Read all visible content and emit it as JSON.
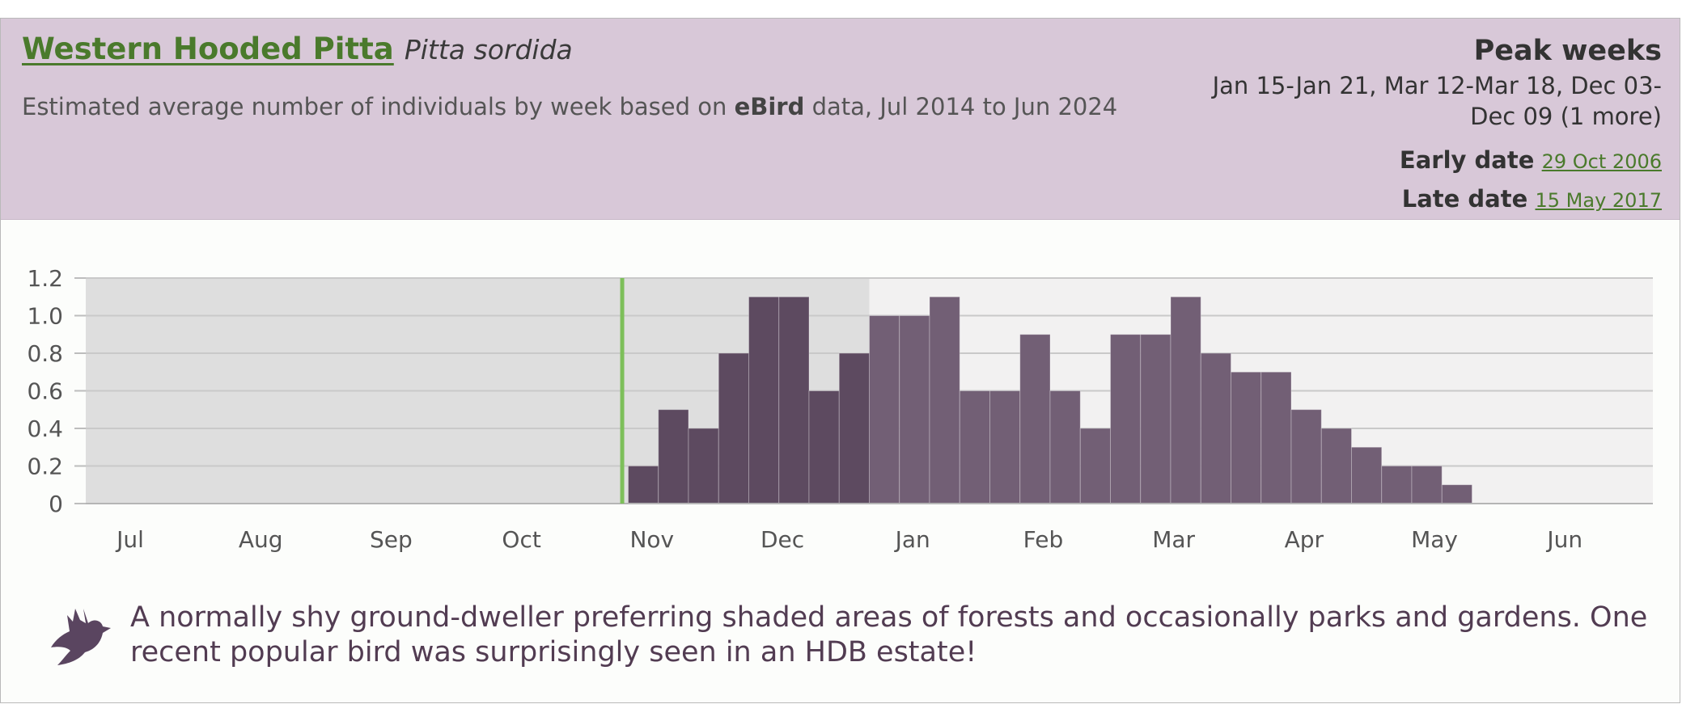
{
  "header": {
    "common_name": "Western Hooded Pitta",
    "scientific_name": "Pitta sordida",
    "subtitle_pre": "Estimated average number of individuals by week based on ",
    "subtitle_source": "eBird",
    "subtitle_post": " data, Jul 2014 to Jun 2024",
    "peak_title": "Peak weeks",
    "peak_text": "Jan 15-Jan 21, Mar 12-Mar 18, Dec 03-Dec 09 (1 more)",
    "early_label": "Early date",
    "early_value": "29 Oct 2006",
    "late_label": "Late date",
    "late_value": "15 May 2017"
  },
  "chart_data": {
    "type": "bar",
    "title": "",
    "xlabel": "",
    "ylabel": "",
    "ylim": [
      0,
      1.2
    ],
    "yticks": [
      "0",
      "0.2",
      "0.4",
      "0.6",
      "0.8",
      "1.0",
      "1.2"
    ],
    "week_count": 52,
    "month_labels": [
      "Jul",
      "Aug",
      "Sep",
      "Oct",
      "Nov",
      "Dec",
      "Jan",
      "Feb",
      "Mar",
      "Apr",
      "May",
      "Jun"
    ],
    "values": [
      0,
      0,
      0,
      0,
      0,
      0,
      0,
      0,
      0,
      0,
      0,
      0,
      0,
      0,
      0,
      0,
      0,
      0,
      0.2,
      0.5,
      0.4,
      0.8,
      1.1,
      1.1,
      0.6,
      0.8,
      1.0,
      1.0,
      1.1,
      0.6,
      0.6,
      0.9,
      0.6,
      0.4,
      0.9,
      0.9,
      1.1,
      0.8,
      0.7,
      0.7,
      0.5,
      0.4,
      0.3,
      0.2,
      0.2,
      0.1,
      0,
      0,
      0,
      0,
      0,
      0
    ],
    "shaded_weeks": [
      0,
      26
    ],
    "current_week_index": 17.8,
    "colors": {
      "bar_dark": "#5d4a60",
      "bar_light": "#725f75",
      "plot_bg": "#f2f1f1",
      "shade_bg": "#dedede",
      "gridline": "#c9c9c9",
      "marker": "#7dbf5a"
    },
    "grid": true,
    "legend": "none"
  },
  "footer": {
    "icon": "bird-icon",
    "description": "A normally shy ground-dweller preferring shaded areas of forests and occasionally parks and gardens. One recent popular bird was surprisingly seen in an HDB estate!"
  }
}
